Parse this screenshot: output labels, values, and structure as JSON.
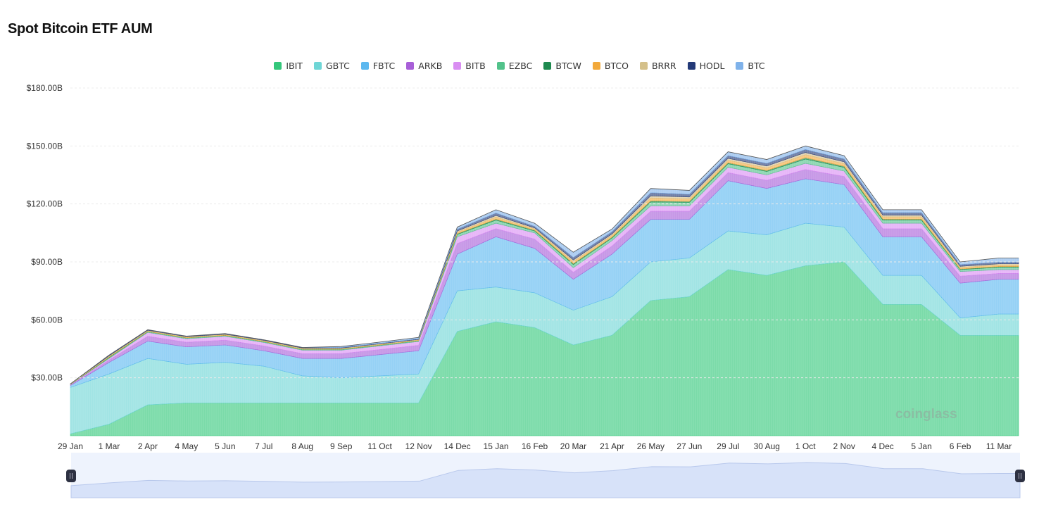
{
  "chart_data": {
    "type": "area",
    "stacked": true,
    "title": "Spot Bitcoin ETF AUM",
    "xlabel": "",
    "ylabel": "",
    "ylim": [
      0,
      180
    ],
    "yticks": [
      "$30.00B",
      "$60.00B",
      "$90.00B",
      "$120.00B",
      "$150.00B",
      "$180.00B"
    ],
    "ytick_values": [
      30,
      60,
      90,
      120,
      150,
      180
    ],
    "grid": true,
    "legend_position": "top",
    "watermark": "coinglass",
    "categories": [
      "29 Jan",
      "1 Mar",
      "2 Apr",
      "4 May",
      "5 Jun",
      "7 Jul",
      "8 Aug",
      "9 Sep",
      "11 Oct",
      "12 Nov",
      "14 Dec",
      "15 Jan",
      "16 Feb",
      "20 Mar",
      "21 Apr",
      "26 May",
      "27 Jun",
      "29 Jul",
      "30 Aug",
      "1 Oct",
      "2 Nov",
      "4 Dec",
      "5 Jan",
      "6 Feb",
      "11 Mar"
    ],
    "series": [
      {
        "name": "IBIT",
        "color": "#34c77b",
        "values": [
          1,
          6,
          16,
          17,
          17,
          17,
          17,
          17,
          17,
          17,
          54,
          59,
          56,
          47,
          52,
          70,
          72,
          86,
          83,
          88,
          90,
          68,
          68,
          52,
          52
        ]
      },
      {
        "name": "GBTC",
        "color": "#6fd6d6",
        "values": [
          24,
          26,
          24,
          20,
          21,
          19,
          14,
          13,
          14,
          15,
          21,
          18,
          18,
          18,
          20,
          20,
          20,
          20,
          21,
          22,
          18,
          15,
          15,
          9,
          11
        ]
      },
      {
        "name": "FBTC",
        "color": "#5cb8ef",
        "values": [
          1,
          6,
          9,
          9,
          9,
          8,
          9,
          10,
          11,
          12,
          19,
          26,
          23,
          16,
          22,
          22,
          20,
          26,
          24,
          23,
          22,
          20,
          20,
          18,
          18
        ]
      },
      {
        "name": "ARKB",
        "color": "#a85fd8",
        "values": [
          0.3,
          1.2,
          2.5,
          2.4,
          2.5,
          2.5,
          2.5,
          2.5,
          2.6,
          2.8,
          5.5,
          4.2,
          4.8,
          3.6,
          4.2,
          4.2,
          4.2,
          4.2,
          4.2,
          4.8,
          4.2,
          4.2,
          4.2,
          3.6,
          3
        ]
      },
      {
        "name": "BITB",
        "color": "#d98ef2",
        "values": [
          0.2,
          0.8,
          2,
          1.8,
          2,
          1.8,
          1.8,
          1.8,
          1.9,
          2,
          3.5,
          2.8,
          3.2,
          2.4,
          2.8,
          2.8,
          2.8,
          2.8,
          2.8,
          3.2,
          2.8,
          2.8,
          2.8,
          2.4,
          2
        ]
      },
      {
        "name": "EZBC",
        "color": "#52c28a",
        "values": [
          0.1,
          0.5,
          0.4,
          0.4,
          0.4,
          0.4,
          0.4,
          0.4,
          0.4,
          0.4,
          1.2,
          1.6,
          1,
          1.6,
          1.4,
          2,
          1.8,
          1.8,
          1.8,
          2.2,
          1.9,
          1.6,
          1.6,
          1,
          1.2
        ]
      },
      {
        "name": "BTCW",
        "color": "#1e8a4f",
        "values": [
          0,
          0.2,
          0.1,
          0.1,
          0.1,
          0.1,
          0.1,
          0.1,
          0.1,
          0.1,
          0.4,
          0.5,
          0.4,
          0.5,
          0.4,
          0.6,
          0.5,
          0.5,
          0.5,
          0.7,
          0.6,
          0.5,
          0.5,
          0.3,
          0.4
        ]
      },
      {
        "name": "BTCO",
        "color": "#f2a93b",
        "values": [
          0.1,
          0.4,
          0.3,
          0.3,
          0.3,
          0.3,
          0.3,
          0.3,
          0.3,
          0.3,
          0.8,
          1.1,
          0.7,
          1.1,
          1,
          1.5,
          1.3,
          1.3,
          1.3,
          1.6,
          1.3,
          1.2,
          1.2,
          0.8,
          0.8
        ]
      },
      {
        "name": "BRRR",
        "color": "#d4c08a",
        "values": [
          0.1,
          0.3,
          0.3,
          0.3,
          0.3,
          0.3,
          0.3,
          0.3,
          0.3,
          0.3,
          0.6,
          0.8,
          0.5,
          0.8,
          0.7,
          1.1,
          1,
          1,
          1,
          1.1,
          1,
          0.9,
          0.9,
          0.6,
          0.6
        ]
      },
      {
        "name": "HODL",
        "color": "#243a78",
        "values": [
          0.1,
          0.4,
          0.3,
          0.3,
          0.3,
          0.3,
          0.3,
          0.3,
          0.3,
          0.3,
          0.9,
          1.3,
          0.8,
          1.3,
          1.1,
          1.6,
          1.4,
          1.4,
          1.4,
          1.6,
          1.5,
          1.3,
          1.3,
          0.9,
          0.9
        ]
      },
      {
        "name": "BTC",
        "color": "#7fb2ea",
        "values": [
          0,
          0,
          0,
          0,
          0,
          0,
          0,
          0.5,
          0.6,
          0.7,
          1.1,
          1.7,
          1.6,
          2.7,
          1.4,
          2.2,
          2,
          2,
          2,
          1.8,
          1.7,
          1.5,
          1.5,
          1.4,
          2.1
        ]
      }
    ]
  }
}
